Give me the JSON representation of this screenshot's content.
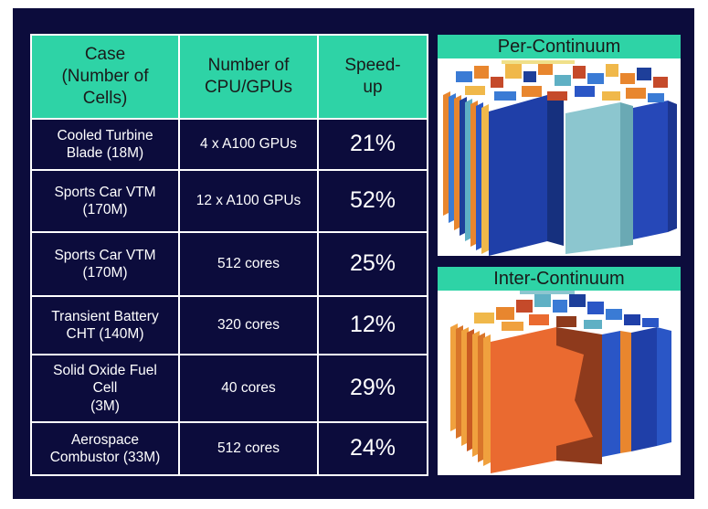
{
  "table": {
    "headers": [
      "Case\n(Number of\nCells)",
      "Number of\nCPU/GPUs",
      "Speed-\nup"
    ],
    "rows": [
      {
        "case": "Cooled Turbine\nBlade (18M)",
        "hardware": "4 x A100 GPUs",
        "speedup": "21%"
      },
      {
        "case": "Sports Car VTM\n(170M)",
        "hardware": "12 x A100 GPUs",
        "speedup": "52%"
      },
      {
        "case": "Sports Car VTM\n(170M)",
        "hardware": "512 cores",
        "speedup": "25%"
      },
      {
        "case": "Transient Battery\nCHT (140M)",
        "hardware": "320 cores",
        "speedup": "12%"
      },
      {
        "case": "Solid Oxide Fuel\nCell\n(3M)",
        "hardware": "40 cores",
        "speedup": "29%"
      },
      {
        "case": "Aerospace\nCombustor (33M)",
        "hardware": "512 cores",
        "speedup": "24%"
      }
    ]
  },
  "panels": {
    "per_continuum": {
      "title": "Per-Continuum"
    },
    "inter_continuum": {
      "title": "Inter-Continuum"
    }
  },
  "colors": {
    "background": "#0c0c3c",
    "header": "#2ed3a6",
    "text": "#ffffff"
  }
}
